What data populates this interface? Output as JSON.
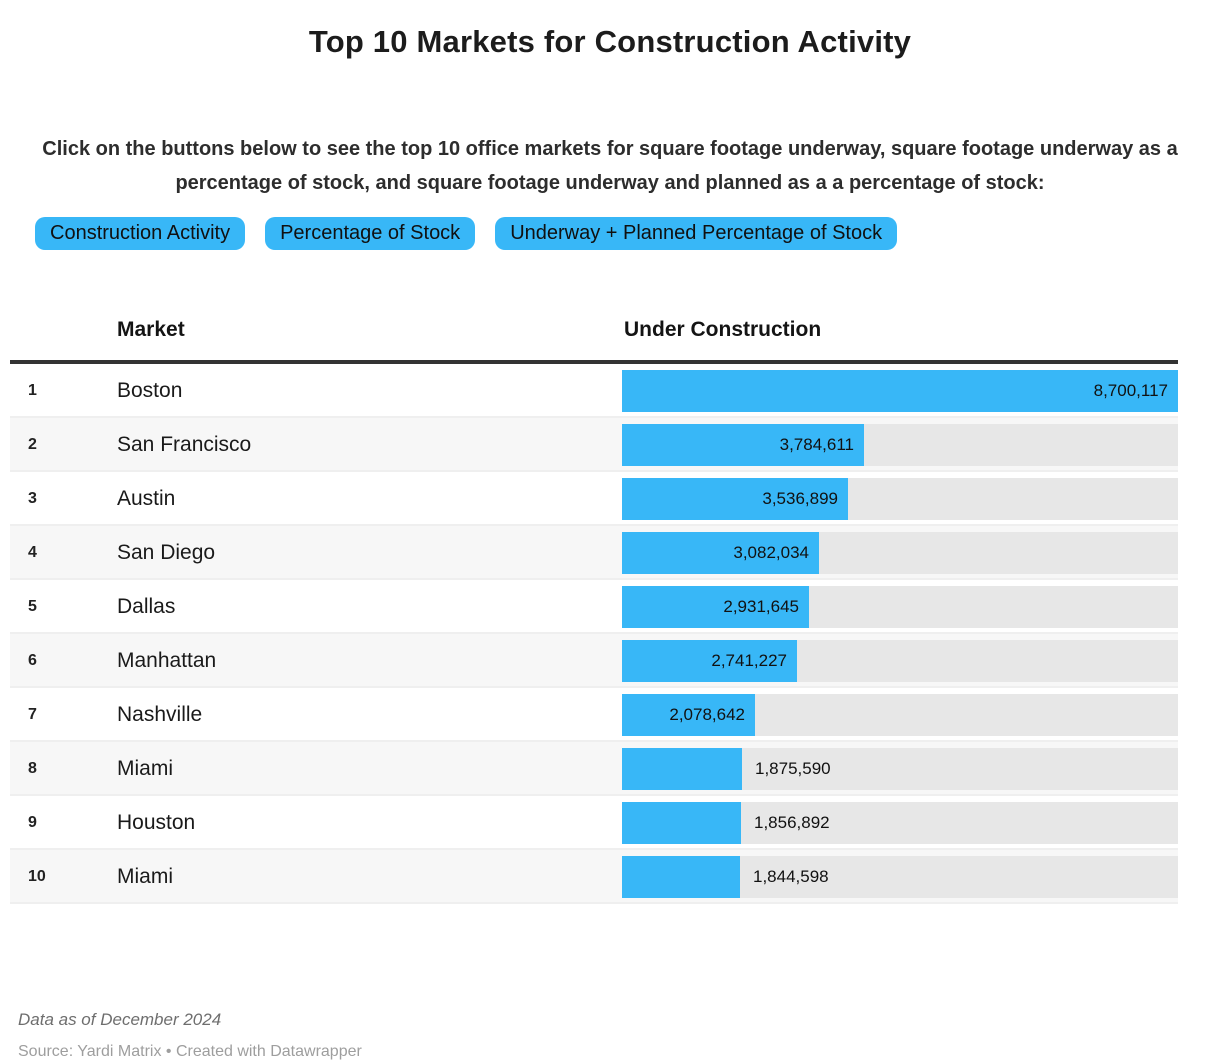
{
  "title": "Top 10 Markets for Construction Activity",
  "intro": "Click on the buttons below to see the top 10 office markets for square footage underway, square footage underway as a percentage of stock, and square footage underway and planned as a a percentage of stock:",
  "buttons": [
    {
      "label": "Construction Activity",
      "active": true
    },
    {
      "label": "Percentage of Stock",
      "active": false
    },
    {
      "label": "Underway + Planned Percentage of Stock",
      "active": false
    }
  ],
  "table": {
    "columns": {
      "market": "Market",
      "value": "Under Construction"
    },
    "rows": [
      {
        "rank": "1",
        "market": "Boston",
        "value": 8700117,
        "label": "8,700,117"
      },
      {
        "rank": "2",
        "market": "San Francisco",
        "value": 3784611,
        "label": "3,784,611"
      },
      {
        "rank": "3",
        "market": "Austin",
        "value": 3536899,
        "label": "3,536,899"
      },
      {
        "rank": "4",
        "market": "San Diego",
        "value": 3082034,
        "label": "3,082,034"
      },
      {
        "rank": "5",
        "market": "Dallas",
        "value": 2931645,
        "label": "2,931,645"
      },
      {
        "rank": "6",
        "market": "Manhattan",
        "value": 2741227,
        "label": "2,741,227"
      },
      {
        "rank": "7",
        "market": "Nashville",
        "value": 2078642,
        "label": "2,078,642"
      },
      {
        "rank": "8",
        "market": "Miami",
        "value": 1875590,
        "label": "1,875,590"
      },
      {
        "rank": "9",
        "market": "Houston",
        "value": 1856892,
        "label": "1,856,892"
      },
      {
        "rank": "10",
        "market": "Miami",
        "value": 1844598,
        "label": "1,844,598"
      }
    ]
  },
  "footer": {
    "note": "Data as of December 2024",
    "source": "Source: Yardi Matrix • Created with Datawrapper"
  },
  "colors": {
    "accent": "#38b7f7",
    "track": "#e7e7e7",
    "stripe": "#f7f7f7",
    "header_rule": "#333333"
  },
  "chart_data": {
    "type": "bar",
    "title": "Top 10 Markets for Construction Activity",
    "categories": [
      "Boston",
      "San Francisco",
      "Austin",
      "San Diego",
      "Dallas",
      "Manhattan",
      "Nashville",
      "Miami",
      "Houston",
      "Miami"
    ],
    "values": [
      8700117,
      3784611,
      3536899,
      3082034,
      2931645,
      2741227,
      2078642,
      1875590,
      1856892,
      1844598
    ],
    "xlabel": "Under Construction",
    "ylabel": "Market",
    "xlim": [
      0,
      8700117
    ],
    "orientation": "horizontal",
    "grid": false,
    "value_labels": [
      "8,700,117",
      "3,784,611",
      "3,536,899",
      "3,082,034",
      "2,931,645",
      "2,741,227",
      "2,078,642",
      "1,875,590",
      "1,856,892",
      "1,844,598"
    ]
  }
}
